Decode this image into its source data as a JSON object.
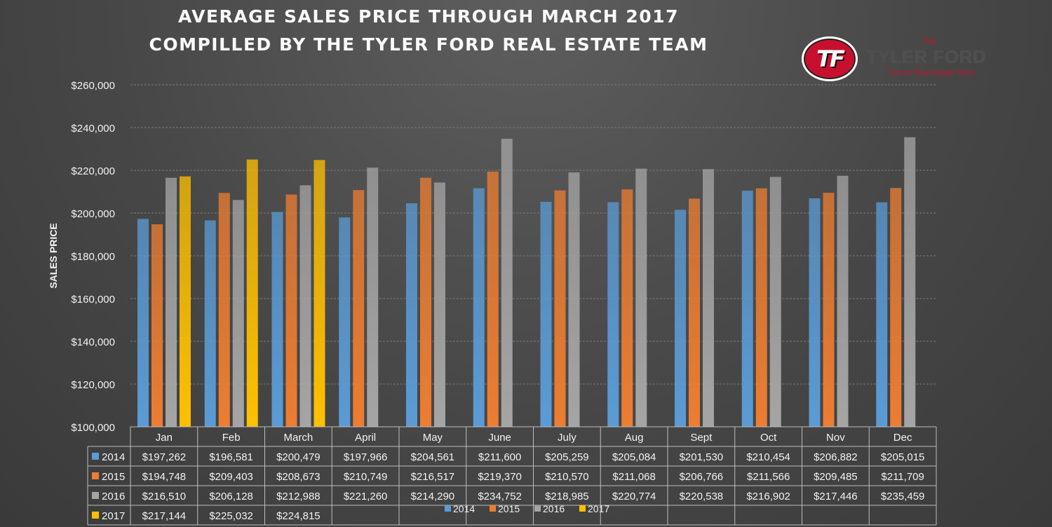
{
  "title_line1": "AVERAGE SALES PRICE THROUGH MARCH 2017",
  "title_line2": "COMPILLED BY THE TYLER FORD REAL ESTATE TEAM",
  "logo": {
    "monogram": "TF",
    "the": "The",
    "name": "TYLER FORD",
    "subtitle": "Tucson Real Estate Team"
  },
  "colors": {
    "2014": "#5b9bd5",
    "2015": "#ed7d31",
    "2016": "#a5a5a5",
    "2017": "#ffc000"
  },
  "chart_data": {
    "type": "bar",
    "title": "AVERAGE SALES PRICE THROUGH MARCH 2017",
    "subtitle": "COMPILLED BY THE TYLER FORD REAL ESTATE TEAM",
    "ylabel": "SALES PRICE",
    "xlabel": "",
    "ylim": [
      100000,
      260000
    ],
    "y_ticks": [
      "$100,000",
      "$120,000",
      "$140,000",
      "$160,000",
      "$180,000",
      "$200,000",
      "$220,000",
      "$240,000",
      "$260,000"
    ],
    "grid": true,
    "legend": "bottom",
    "data_table": true,
    "categories": [
      "Jan",
      "Feb",
      "March",
      "April",
      "May",
      "June",
      "July",
      "Aug",
      "Sept",
      "Oct",
      "Nov",
      "Dec"
    ],
    "series": [
      {
        "name": "2014",
        "values": [
          197262,
          196581,
          200479,
          197966,
          204561,
          211600,
          205259,
          205084,
          201530,
          210454,
          206882,
          205015
        ],
        "labels": [
          "$197,262",
          "$196,581",
          "$200,479",
          "$197,966",
          "$204,561",
          "$211,600",
          "$205,259",
          "$205,084",
          "$201,530",
          "$210,454",
          "$206,882",
          "$205,015"
        ]
      },
      {
        "name": "2015",
        "values": [
          194748,
          209403,
          208673,
          210749,
          216517,
          219370,
          210570,
          211068,
          206766,
          211566,
          209485,
          211709
        ],
        "labels": [
          "$194,748",
          "$209,403",
          "$208,673",
          "$210,749",
          "$216,517",
          "$219,370",
          "$210,570",
          "$211,068",
          "$206,766",
          "$211,566",
          "$209,485",
          "$211,709"
        ]
      },
      {
        "name": "2016",
        "values": [
          216510,
          206128,
          212988,
          221260,
          214290,
          234752,
          218985,
          220774,
          220538,
          216902,
          217446,
          235459
        ],
        "labels": [
          "$216,510",
          "$206,128",
          "$212,988",
          "$221,260",
          "$214,290",
          "$234,752",
          "$218,985",
          "$220,774",
          "$220,538",
          "$216,902",
          "$217,446",
          "$235,459"
        ]
      },
      {
        "name": "2017",
        "values": [
          217144,
          225032,
          224815,
          null,
          null,
          null,
          null,
          null,
          null,
          null,
          null,
          null
        ],
        "labels": [
          "$217,144",
          "$225,032",
          "$224,815",
          "",
          "",
          "",
          "",
          "",
          "",
          "",
          "",
          ""
        ]
      }
    ]
  }
}
